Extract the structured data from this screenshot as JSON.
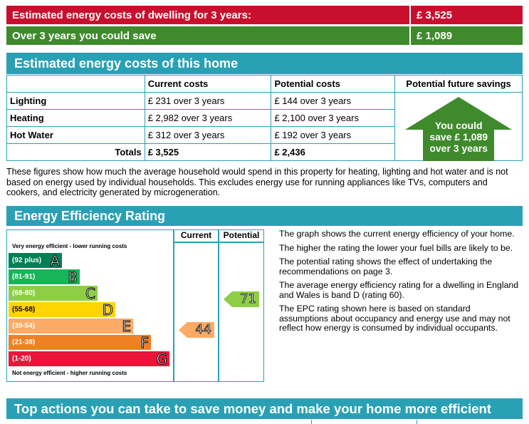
{
  "summary": {
    "estimated_label": "Estimated energy costs of dwelling for 3 years:",
    "estimated_value": "£ 3,525",
    "save_label": "Over 3 years you could save",
    "save_value": "£ 1,089"
  },
  "costs_section": {
    "title": "Estimated energy costs of this home",
    "headers": {
      "item": "",
      "current": "Current costs",
      "potential": "Potential costs",
      "savings": "Potential future savings"
    },
    "rows": [
      {
        "label": "Lighting",
        "current": "£ 231 over 3 years",
        "potential": "£ 144 over 3 years"
      },
      {
        "label": "Heating",
        "current": "£ 2,982 over 3 years",
        "potential": "£ 2,100 over 3 years"
      },
      {
        "label": "Hot Water",
        "current": "£ 312 over 3 years",
        "potential": "£ 192 over 3 years"
      }
    ],
    "totals": {
      "label": "Totals",
      "current": "£ 3,525",
      "potential": "£ 2,436"
    },
    "savings_arrow": {
      "line1": "You could",
      "line2": "save £ 1,089",
      "line3": "over 3 years",
      "color": "#3f8a2c"
    }
  },
  "explanation": "These figures show how much the average household would spend in this property for heating, lighting and hot water and is not based on energy used by individual households. This excludes energy use for running appliances like TVs, computers and cookers, and electricity generated by microgeneration.",
  "efficiency": {
    "title": "Energy Efficiency Rating",
    "col_current": "Current",
    "col_potential": "Potential",
    "top_label": "Very energy efficient - lower running costs",
    "bottom_label": "Not energy efficient - higher running costs",
    "bands": [
      {
        "range": "(92 plus)",
        "letter": "A",
        "color": "#008054"
      },
      {
        "range": "(81-91)",
        "letter": "B",
        "color": "#19b459"
      },
      {
        "range": "(69-80)",
        "letter": "C",
        "color": "#8dce46"
      },
      {
        "range": "(55-68)",
        "letter": "D",
        "color": "#ffd500"
      },
      {
        "range": "(39-54)",
        "letter": "E",
        "color": "#fcaa65"
      },
      {
        "range": "(21-38)",
        "letter": "F",
        "color": "#ef8023"
      },
      {
        "range": "(1-20)",
        "letter": "G",
        "color": "#e9153b"
      }
    ],
    "current_rating": {
      "value": "44",
      "band": "E"
    },
    "potential_rating": {
      "value": "71",
      "band": "C"
    },
    "paragraphs": [
      "The graph shows the current energy efficiency of your home.",
      "The higher the rating the lower your fuel bills are likely to be.",
      "The potential rating shows the effect of undertaking the recommendations on page 3.",
      "The average energy efficiency rating for a dwelling in England and Wales is band D (rating 60).",
      "The EPC rating shown here is based on standard assumptions about occupancy and energy use and may not reflect how energy is consumed by individual occupants."
    ]
  },
  "actions": {
    "title": "Top actions you can take to save money and make your home more efficient"
  }
}
